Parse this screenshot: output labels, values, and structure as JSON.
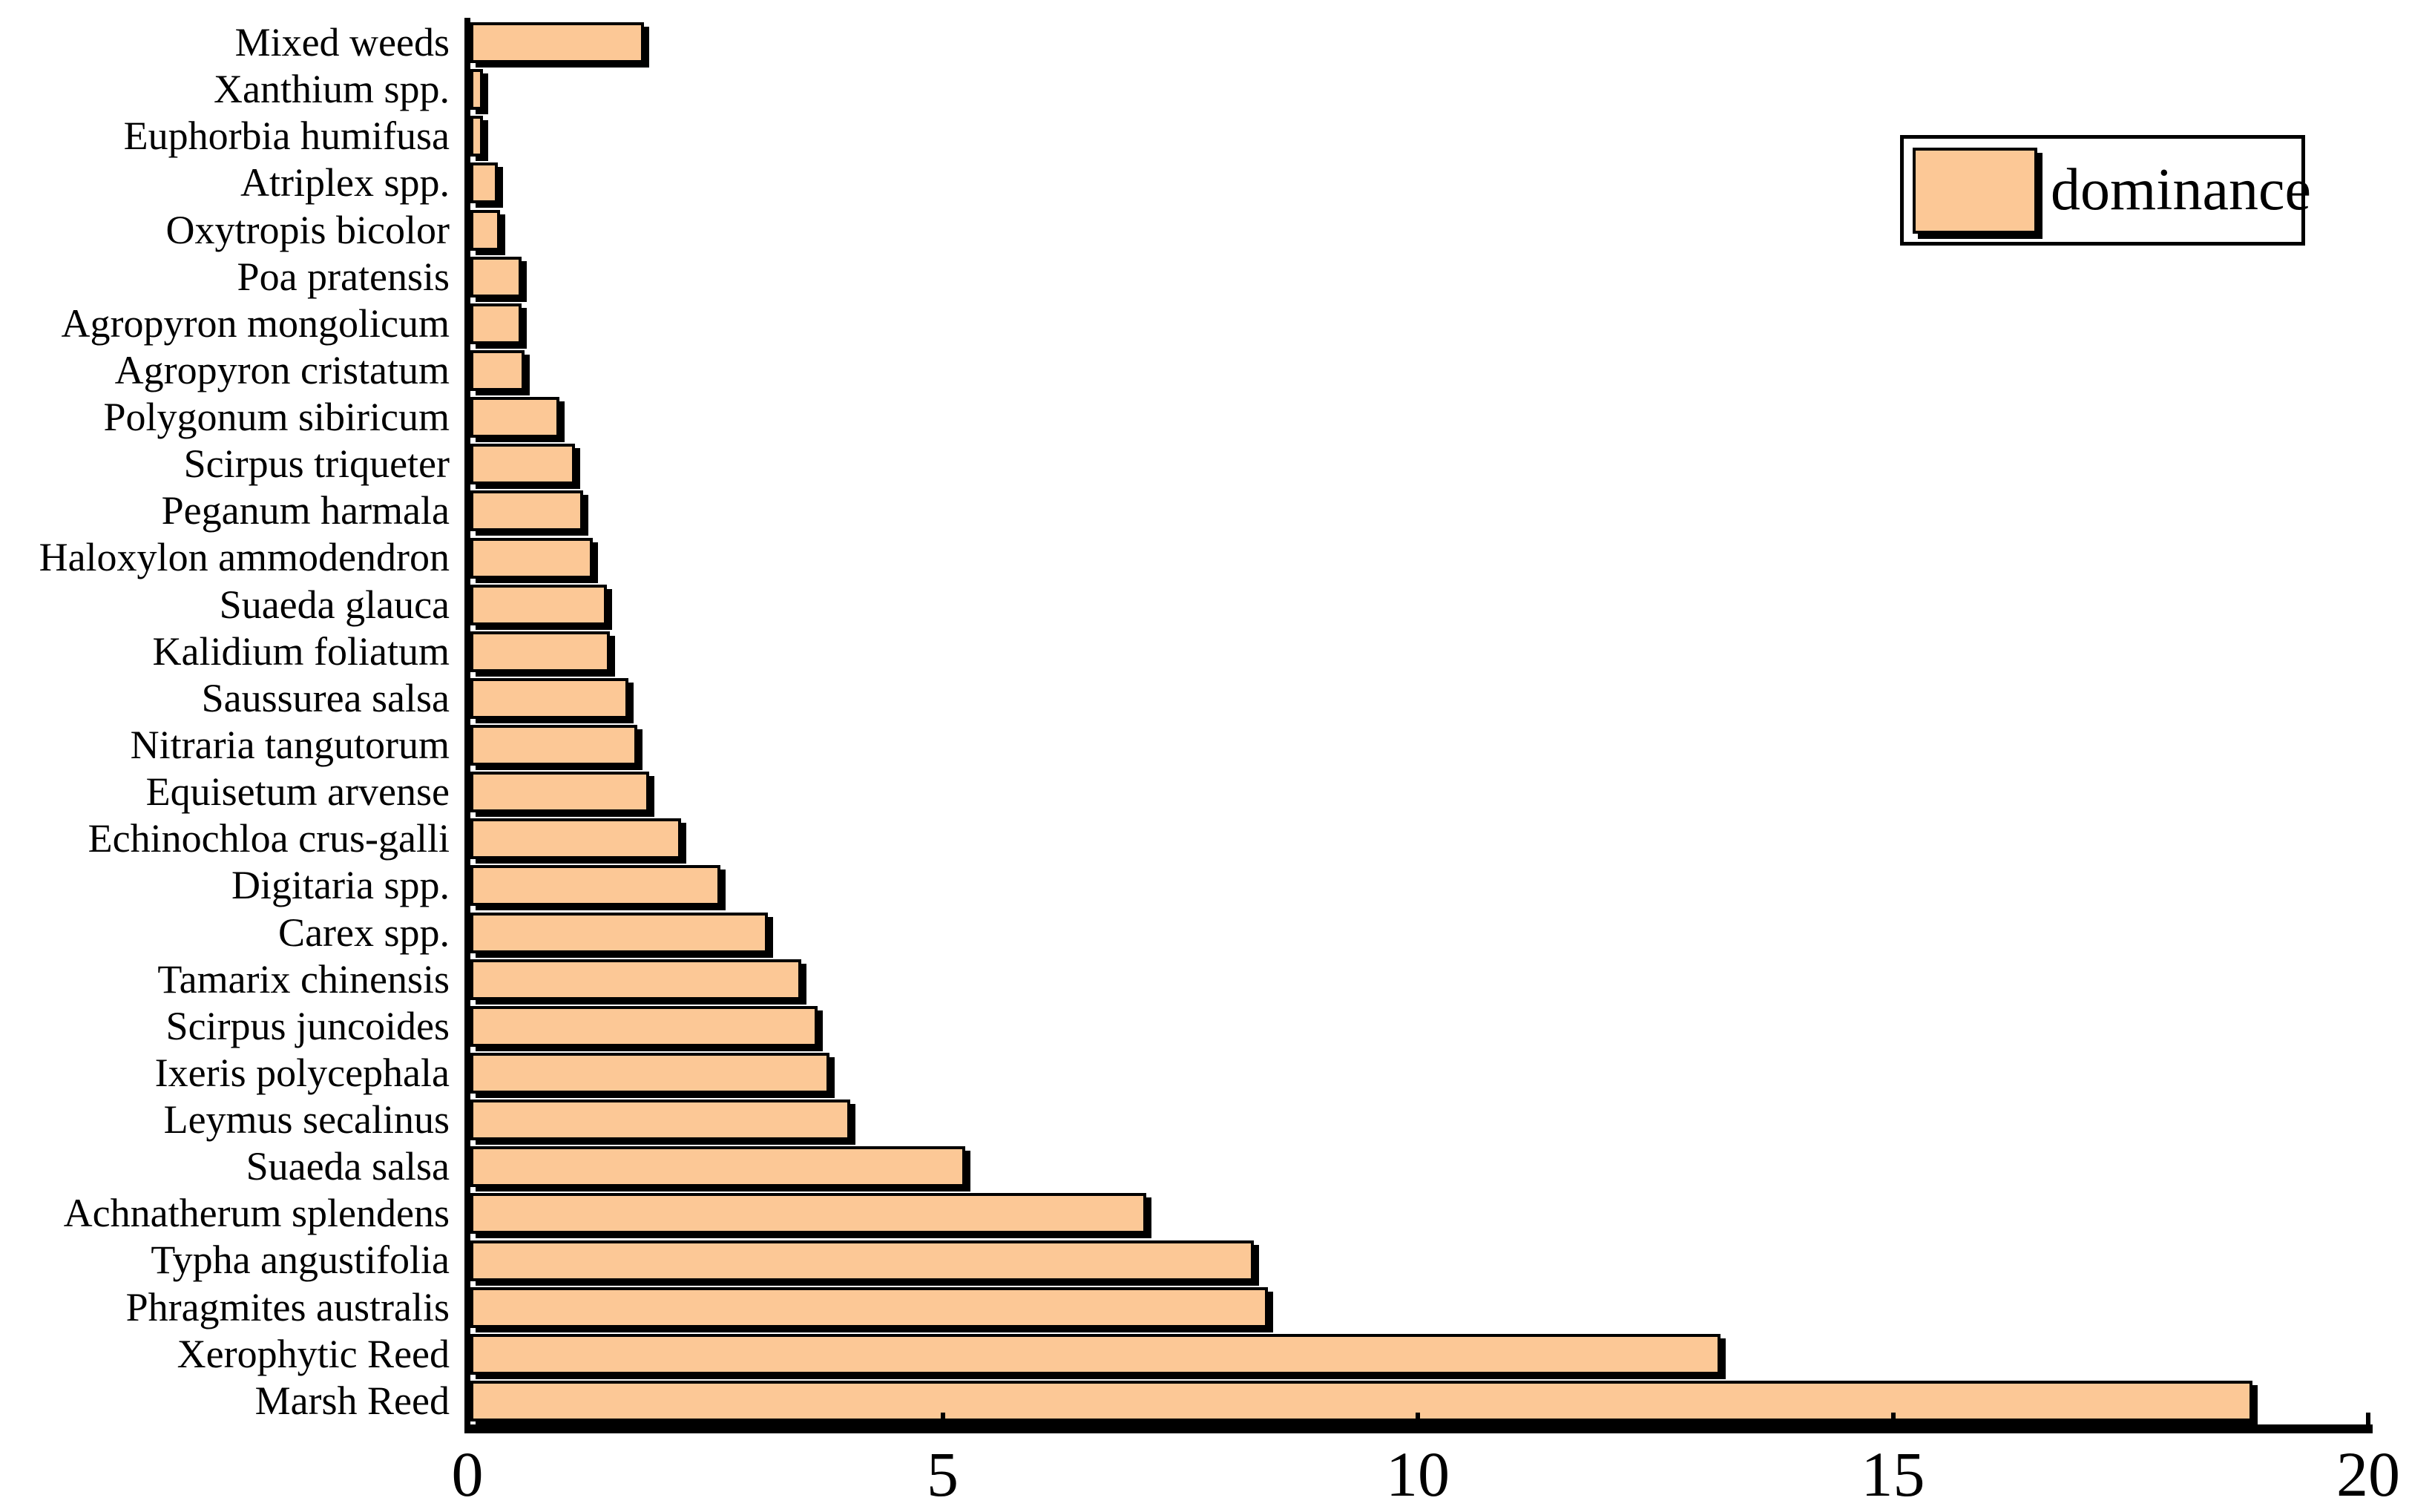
{
  "chart_data": {
    "type": "bar",
    "orientation": "horizontal",
    "title": "",
    "xlabel": "",
    "ylabel": "",
    "grid": false,
    "xlim": [
      0,
      20
    ],
    "xticks": [
      0,
      5,
      10,
      15,
      20
    ],
    "legend": {
      "label": "dominance",
      "position": "upper-right"
    },
    "bar_color": "#FCC896",
    "bar_border_color": "#000000",
    "categories": [
      "Mixed weeds",
      "Xanthium spp.",
      "Euphorbia humifusa",
      "Atriplex spp.",
      "Oxytropis bicolor",
      "Poa pratensis",
      "Agropyron mongolicum",
      "Agropyron cristatum",
      "Polygonum sibiricum",
      "Scirpus triqueter",
      "Peganum harmala",
      "Haloxylon ammodendron",
      "Suaeda glauca",
      "Kalidium foliatum",
      "Saussurea salsa",
      "Nitraria tangutorum",
      "Equisetum arvense",
      "Echinochloa crus-galli",
      "Digitaria spp.",
      "Carex spp.",
      "Tamarix chinensis",
      "Scirpus juncoides",
      "Ixeris polycephala",
      "Leymus secalinus",
      "Suaeda salsa",
      "Achnatherum splendens",
      "Typha angustifolia",
      "Phragmites australis",
      "Xerophytic Reed",
      "Marsh Reed"
    ],
    "series": [
      {
        "name": "dominance",
        "values": [
          1.83,
          0.13,
          0.13,
          0.29,
          0.31,
          0.54,
          0.54,
          0.57,
          0.94,
          1.1,
          1.19,
          1.29,
          1.44,
          1.47,
          1.66,
          1.76,
          1.88,
          2.22,
          2.63,
          3.13,
          3.48,
          3.65,
          3.78,
          4.0,
          5.21,
          7.11,
          8.24,
          8.39,
          13.15,
          18.75
        ]
      }
    ]
  }
}
